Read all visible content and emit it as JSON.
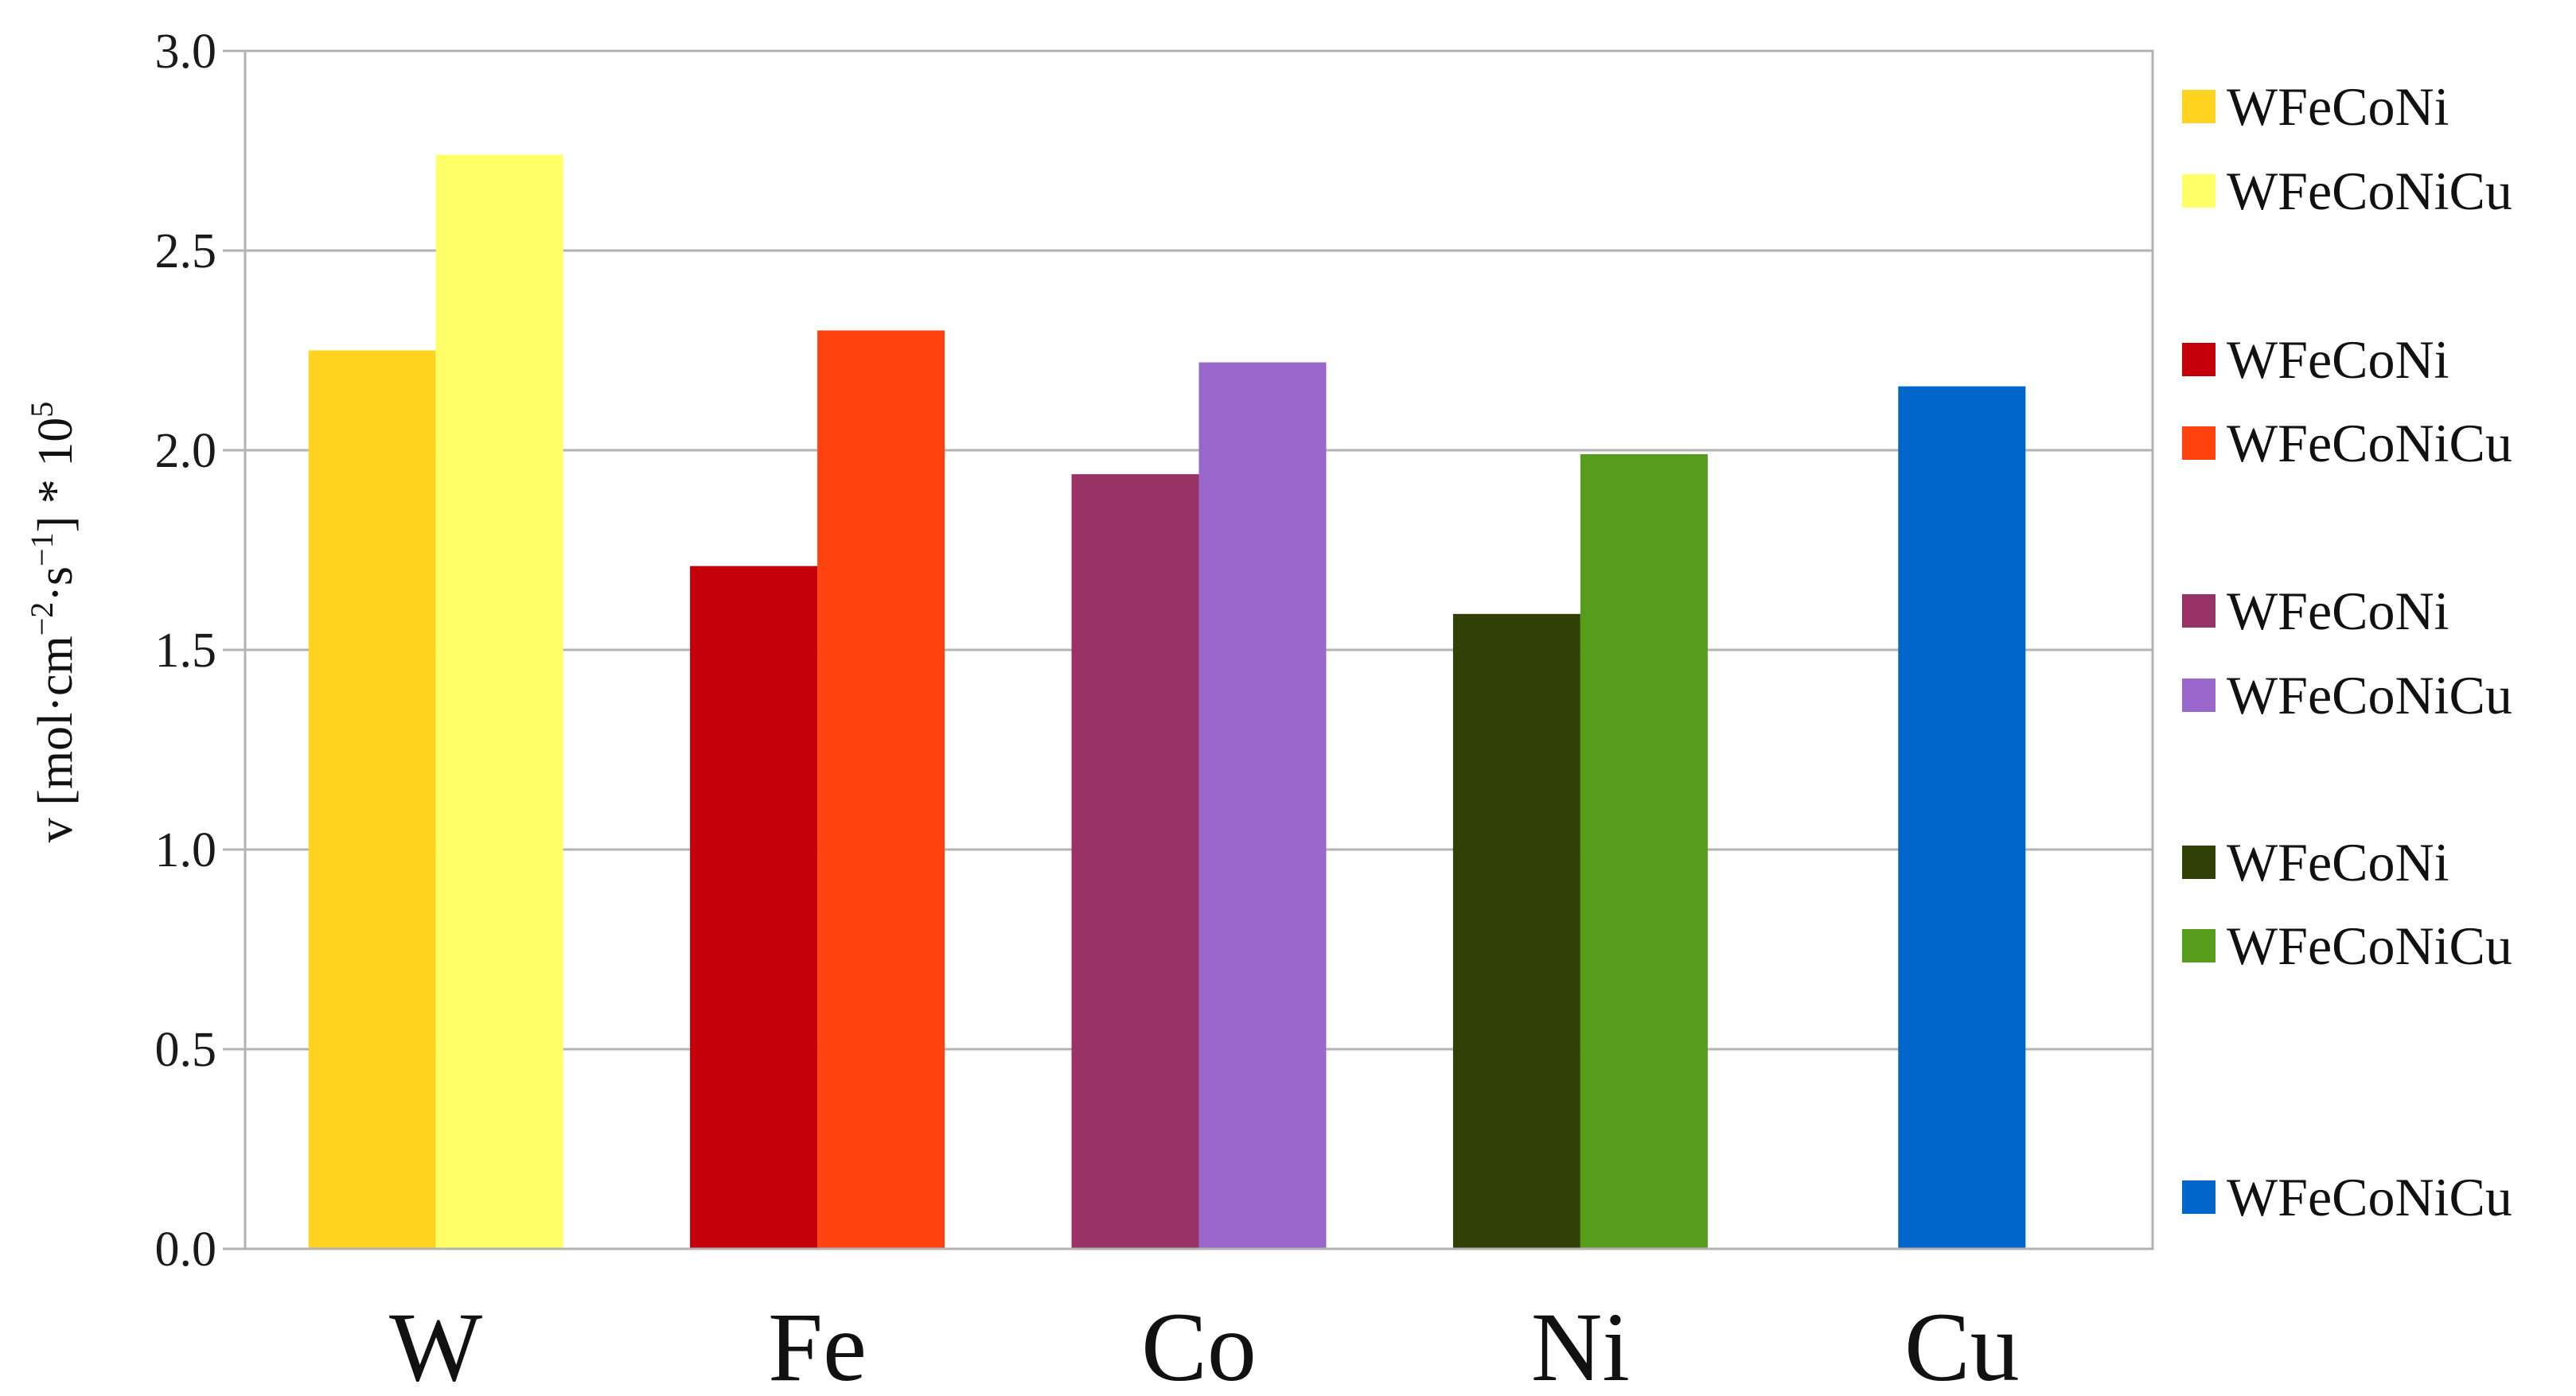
{
  "chart_data": {
    "type": "bar",
    "categories": [
      "W",
      "Fe",
      "Co",
      "Ni",
      "Cu"
    ],
    "ylabel": {
      "prefix": "v [mol·cm",
      "exp1": "−2",
      "mid": "·s",
      "exp2": "−1",
      "suffix": "] * 10",
      "exp3": "5"
    },
    "ylim": [
      0,
      3.0
    ],
    "yticks": [
      "0.0",
      "0.5",
      "1.0",
      "1.5",
      "2.0",
      "2.5",
      "3.0"
    ],
    "ytick_values": [
      0,
      0.5,
      1.0,
      1.5,
      2.0,
      2.5,
      3.0
    ],
    "grid": true,
    "legend_position": "right",
    "groups": [
      {
        "category": "W",
        "bars": [
          {
            "name": "WFeCoNi",
            "value": 2.25,
            "color": "#FFD320"
          },
          {
            "name": "WFeCoNiCu",
            "value": 2.74,
            "color": "#FFFF66"
          }
        ]
      },
      {
        "category": "Fe",
        "bars": [
          {
            "name": "WFeCoNi",
            "value": 1.71,
            "color": "#C5000B"
          },
          {
            "name": "WFeCoNiCu",
            "value": 2.3,
            "color": "#FF420E"
          }
        ]
      },
      {
        "category": "Co",
        "bars": [
          {
            "name": "WFeCoNi",
            "value": 1.94,
            "color": "#993366"
          },
          {
            "name": "WFeCoNiCu",
            "value": 2.22,
            "color": "#9966CC"
          }
        ]
      },
      {
        "category": "Ni",
        "bars": [
          {
            "name": "WFeCoNi",
            "value": 1.59,
            "color": "#314004"
          },
          {
            "name": "WFeCoNiCu",
            "value": 1.99,
            "color": "#579D1C"
          }
        ]
      },
      {
        "category": "Cu",
        "bars": [
          {
            "name": "WFeCoNiCu",
            "value": 2.16,
            "color": "#0066CC"
          }
        ]
      }
    ],
    "legend": [
      {
        "label": "WFeCoNi",
        "color": "#FFD320"
      },
      {
        "label": "WFeCoNiCu",
        "color": "#FFFF66"
      },
      {
        "label": "WFeCoNi",
        "color": "#C5000B"
      },
      {
        "label": "WFeCoNiCu",
        "color": "#FF420E"
      },
      {
        "label": "WFeCoNi",
        "color": "#993366"
      },
      {
        "label": "WFeCoNiCu",
        "color": "#9966CC"
      },
      {
        "label": "WFeCoNi",
        "color": "#314004"
      },
      {
        "label": "WFeCoNiCu",
        "color": "#579D1C"
      },
      {
        "label": "WFeCoNiCu",
        "color": "#0066CC"
      }
    ]
  }
}
